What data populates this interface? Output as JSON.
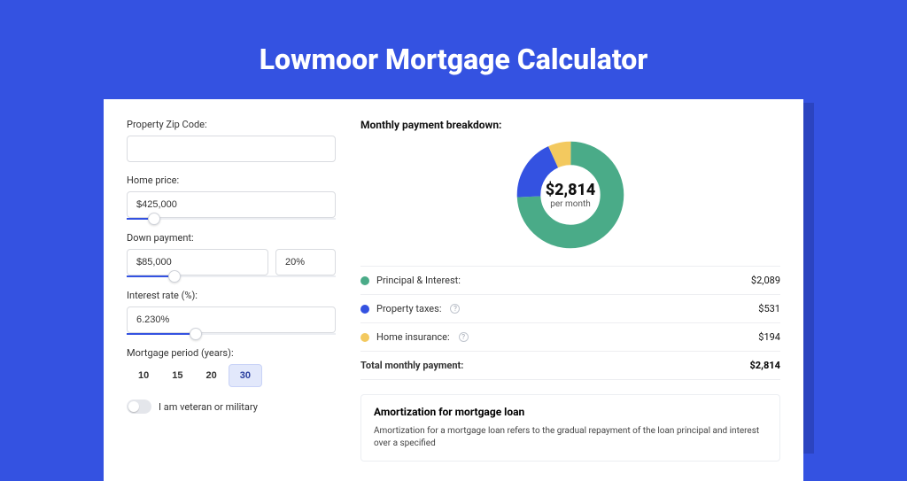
{
  "page": {
    "title": "Lowmoor Mortgage Calculator",
    "background_color": "#3452e1",
    "shadow_color": "#2b44c0"
  },
  "form": {
    "zip": {
      "label": "Property Zip Code:",
      "value": ""
    },
    "home_price": {
      "label": "Home price:",
      "value": "$425,000",
      "slider_pct": 10
    },
    "down_payment": {
      "label": "Down payment:",
      "amount": "$85,000",
      "percent": "20%",
      "slider_pct": 20
    },
    "interest_rate": {
      "label": "Interest rate (%):",
      "value": "6.230%",
      "slider_pct": 30
    },
    "period": {
      "label": "Mortgage period (years):",
      "options": [
        "10",
        "15",
        "20",
        "30"
      ],
      "selected": "30"
    },
    "veteran": {
      "label": "I am veteran or military",
      "checked": false
    }
  },
  "breakdown": {
    "title": "Monthly payment breakdown:",
    "donut": {
      "amount": "$2,814",
      "sub": "per month",
      "slices": [
        {
          "key": "principal",
          "pct": 74.2,
          "color": "#4aab88"
        },
        {
          "key": "taxes",
          "pct": 18.9,
          "color": "#3452e1"
        },
        {
          "key": "insurance",
          "pct": 6.9,
          "color": "#f3c95f"
        }
      ]
    },
    "rows": [
      {
        "label": "Principal & Interest:",
        "value": "$2,089",
        "color": "#4aab88",
        "info": false
      },
      {
        "label": "Property taxes:",
        "value": "$531",
        "color": "#3452e1",
        "info": true
      },
      {
        "label": "Home insurance:",
        "value": "$194",
        "color": "#f3c95f",
        "info": true
      }
    ],
    "total": {
      "label": "Total monthly payment:",
      "value": "$2,814"
    }
  },
  "amortization": {
    "title": "Amortization for mortgage loan",
    "text": "Amortization for a mortgage loan refers to the gradual repayment of the loan principal and interest over a specified"
  }
}
